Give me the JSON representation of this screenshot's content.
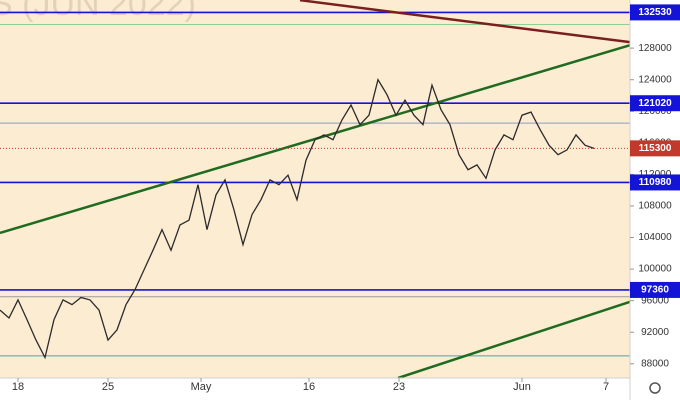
{
  "chart_data": {
    "type": "line",
    "watermark": "S (JUN 2022)",
    "color": "#2b2b2b",
    "x": [
      0,
      3,
      6,
      9,
      12,
      15,
      18,
      21,
      24,
      27,
      30,
      33,
      36,
      39,
      42,
      45,
      48,
      51,
      54,
      57,
      60,
      63,
      66,
      69,
      72,
      75,
      78,
      81,
      84,
      87,
      90,
      93,
      96,
      99,
      102,
      105,
      108,
      111,
      114,
      117,
      120,
      123,
      126,
      129,
      132,
      135,
      138,
      141,
      144,
      147,
      150,
      153,
      156,
      159,
      162,
      165,
      168,
      171,
      174,
      177,
      180,
      183,
      186,
      189,
      192,
      195,
      198
    ],
    "values": [
      94800,
      93800,
      96100,
      93600,
      91000,
      88800,
      93600,
      96100,
      95500,
      96400,
      96100,
      94800,
      91000,
      92300,
      95500,
      97400,
      99900,
      102400,
      105000,
      102400,
      105600,
      106200,
      110700,
      105000,
      109400,
      111300,
      107500,
      103100,
      106900,
      108800,
      111300,
      110700,
      111900,
      108800,
      113800,
      116400,
      117000,
      116400,
      118900,
      120800,
      118300,
      119500,
      124000,
      122100,
      119500,
      121400,
      119500,
      118300,
      123300,
      120200,
      118300,
      114500,
      112600,
      113200,
      111500,
      115100,
      117000,
      116400,
      119500,
      119900,
      117700,
      115700,
      114500,
      115100,
      117000,
      115700,
      115300
    ],
    "xlim": [
      0,
      210
    ],
    "xticks": [
      {
        "value": 6,
        "label": "18"
      },
      {
        "value": 36,
        "label": "25"
      },
      {
        "value": 67,
        "label": "May"
      },
      {
        "value": 103,
        "label": "16"
      },
      {
        "value": 133,
        "label": "23"
      },
      {
        "value": 174,
        "label": "Jun"
      },
      {
        "value": 202,
        "label": "7"
      }
    ],
    "ylim": [
      86200,
      134100
    ],
    "yticks": [
      88000,
      92000,
      96000,
      100000,
      104000,
      108000,
      112000,
      116000,
      120000,
      124000,
      128000
    ],
    "levels": [
      {
        "value": 132530,
        "color": "#1414d8"
      },
      {
        "value": 121020,
        "color": "#1414d8"
      },
      {
        "value": 110980,
        "color": "#1414d8"
      },
      {
        "value": 97360,
        "color": "#1414d8"
      }
    ],
    "current": {
      "value": 115300,
      "color": "#c0392b"
    },
    "guide_lines": [
      {
        "value": 131000,
        "color": "#8fd08f"
      },
      {
        "value": 118500,
        "color": "#8a9bc8"
      },
      {
        "value": 96500,
        "color": "#9a9a9a"
      },
      {
        "value": 89000,
        "color": "#5aa0a8"
      }
    ],
    "trendlines": [
      {
        "color": "#7a1f1f",
        "points": [
          [
            100,
            134076
          ],
          [
            210,
            128760
          ]
        ]
      },
      {
        "color": "#1f6b1f",
        "points": [
          [
            0,
            104580
          ],
          [
            210,
            128380
          ]
        ]
      },
      {
        "color": "#1f6b1f",
        "points": [
          [
            132.7,
            86200
          ],
          [
            210,
            95850
          ]
        ]
      }
    ]
  }
}
